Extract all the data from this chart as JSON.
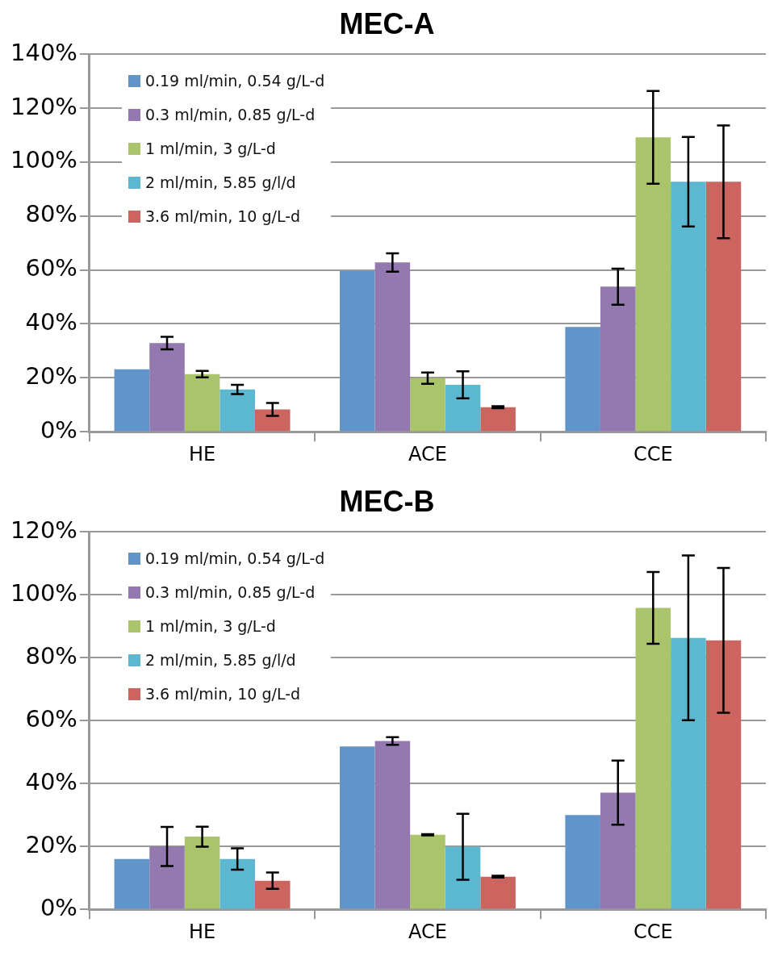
{
  "chart_data": [
    {
      "type": "bar",
      "title": "MEC-A",
      "categories": [
        "HE",
        "ACE",
        "CCE"
      ],
      "series": [
        {
          "name": "0.19 ml/min, 0.54 g/L-d",
          "color": "#6194c9",
          "values": [
            23.2,
            59.6,
            38.9
          ]
        },
        {
          "name": "0.3 ml/min, 0.85 g/L-d",
          "color": "#9479b0",
          "values": [
            32.9,
            62.8,
            53.8
          ],
          "errors": [
            2.3,
            3.4,
            6.7
          ]
        },
        {
          "name": "1 ml/min, 3 g/L-d",
          "color": "#a9c46a",
          "values": [
            21.4,
            19.9,
            109.2
          ],
          "errors": [
            1.2,
            2.1,
            17.2
          ]
        },
        {
          "name": "2 ml/min, 5.85 g/l/d",
          "color": "#5bb8d0",
          "values": [
            15.7,
            17.4,
            92.7
          ],
          "errors": [
            1.7,
            5.0,
            16.6
          ]
        },
        {
          "name": "3.6 ml/min, 10 g/L-d",
          "color": "#cc655f",
          "values": [
            8.3,
            9.1,
            92.7
          ],
          "errors": [
            2.4,
            0.4,
            20.9
          ]
        }
      ],
      "ylim": [
        0,
        140
      ],
      "yticks": [
        {
          "value": 0,
          "label": "0%"
        },
        {
          "value": 20,
          "label": "20%"
        },
        {
          "value": 40,
          "label": "40%"
        },
        {
          "value": 60,
          "label": "60%"
        },
        {
          "value": 80,
          "label": "80%"
        },
        {
          "value": 100,
          "label": "100%"
        },
        {
          "value": 120,
          "label": "120%"
        },
        {
          "value": 140,
          "label": "140%"
        }
      ],
      "grid": "y",
      "legend": "top left"
    },
    {
      "type": "bar",
      "title": "MEC-B",
      "categories": [
        "HE",
        "ACE",
        "CCE"
      ],
      "series": [
        {
          "name": "0.19 ml/min, 0.54 g/L-d",
          "color": "#6194c9",
          "values": [
            16.0,
            51.8,
            30.0
          ]
        },
        {
          "name": "0.3 ml/min, 0.85 g/L-d",
          "color": "#9479b0",
          "values": [
            20.0,
            53.5,
            37.1
          ],
          "errors": [
            6.2,
            1.2,
            10.2
          ]
        },
        {
          "name": "1 ml/min, 3 g/L-d",
          "color": "#a9c46a",
          "values": [
            23.1,
            23.7,
            95.8
          ],
          "errors": [
            3.2,
            0.2,
            11.4
          ]
        },
        {
          "name": "2 ml/min, 5.85 g/l/d",
          "color": "#5bb8d0",
          "values": [
            16.0,
            19.9,
            86.3
          ],
          "errors": [
            3.4,
            10.5,
            26.2
          ]
        },
        {
          "name": "3.6 ml/min, 10 g/L-d",
          "color": "#cc655f",
          "values": [
            9.1,
            10.4,
            85.5
          ],
          "errors": [
            2.6,
            0.3,
            23.0
          ]
        }
      ],
      "ylim": [
        0,
        120
      ],
      "yticks": [
        {
          "value": 0,
          "label": "0%"
        },
        {
          "value": 20,
          "label": "20%"
        },
        {
          "value": 40,
          "label": "40%"
        },
        {
          "value": 60,
          "label": "60%"
        },
        {
          "value": 80,
          "label": "80%"
        },
        {
          "value": 100,
          "label": "100%"
        },
        {
          "value": 120,
          "label": "120%"
        }
      ],
      "grid": "y",
      "legend": "top left"
    }
  ]
}
